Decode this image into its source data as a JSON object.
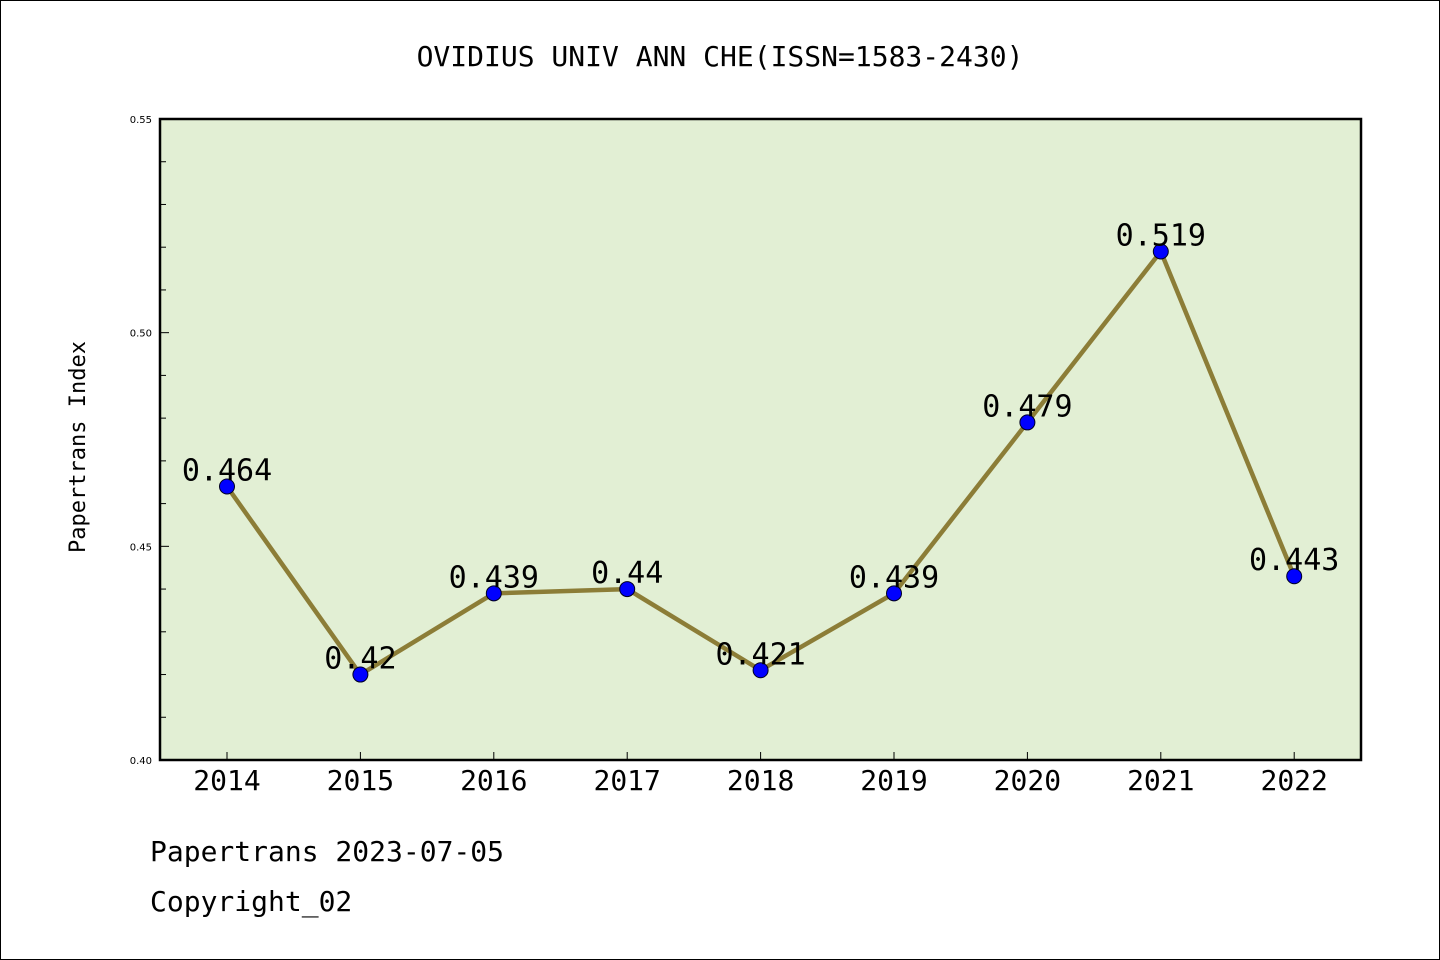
{
  "chart_data": {
    "type": "line",
    "title": "OVIDIUS UNIV ANN CHE(ISSN=1583-2430)",
    "xlabel": "",
    "ylabel": "Papertrans Index",
    "categories": [
      "2014",
      "2015",
      "2016",
      "2017",
      "2018",
      "2019",
      "2020",
      "2021",
      "2022"
    ],
    "values": [
      0.464,
      0.42,
      0.439,
      0.44,
      0.421,
      0.439,
      0.479,
      0.519,
      0.443
    ],
    "data_labels": [
      "0.464",
      "0.42",
      "0.439",
      "0.44",
      "0.421",
      "0.439",
      "0.479",
      "0.519",
      "0.443"
    ],
    "ylim": [
      0.4,
      0.55
    ],
    "yticks": [
      0.4,
      0.45,
      0.5,
      0.55
    ],
    "ytick_labels": [
      "0.40",
      "0.45",
      "0.50",
      "0.55"
    ],
    "grid": false,
    "colors": {
      "plot_background": "#e2efd4",
      "line": "#8c7d37",
      "marker": "#0000ff",
      "axes": "#000000"
    }
  },
  "footer": {
    "line1": "Papertrans 2023-07-05",
    "line2": "Copyright_02"
  }
}
